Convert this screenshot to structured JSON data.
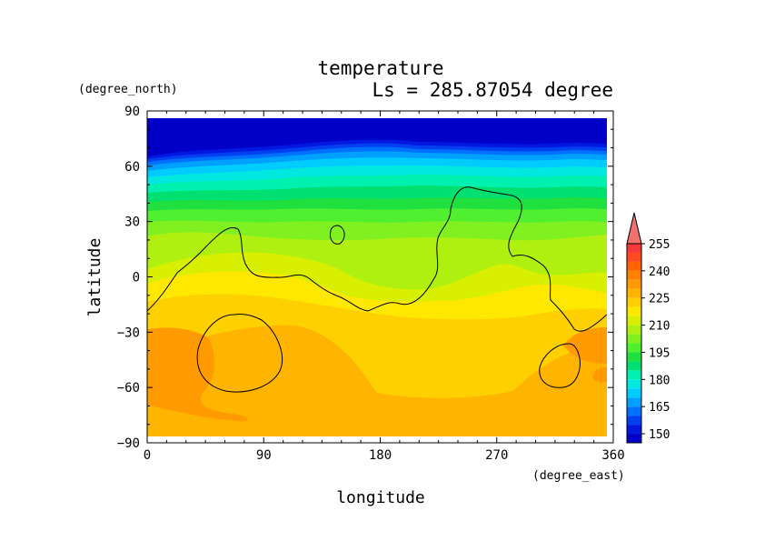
{
  "chart_data": {
    "type": "heatmap",
    "title": "temperature",
    "subtitle": "Ls = 285.87054 degree",
    "xlabel": "longitude",
    "ylabel": "latitude",
    "xunit": "(degree_east)",
    "yunit": "(degree_north)",
    "xlim": [
      0,
      360
    ],
    "ylim": [
      -90,
      90
    ],
    "xticks": [
      0,
      90,
      180,
      270,
      360
    ],
    "yticks": [
      90,
      60,
      30,
      0,
      -30,
      -60,
      -90
    ],
    "xtick_labels": [
      "0",
      "90",
      "180",
      "270",
      "360"
    ],
    "ytick_labels": [
      "90",
      "60",
      "30",
      "0",
      "−30",
      "−60",
      "−90"
    ],
    "colorbar": {
      "levels": [
        145,
        150,
        155,
        160,
        165,
        170,
        175,
        180,
        185,
        190,
        195,
        200,
        205,
        210,
        215,
        220,
        225,
        230,
        235,
        240,
        245,
        250,
        255,
        260
      ],
      "labels": [
        "150",
        "165",
        "180",
        "195",
        "210",
        "225",
        "240",
        "255"
      ],
      "label_values": [
        150,
        165,
        180,
        195,
        210,
        225,
        240,
        255
      ],
      "colors": [
        "#0000c8",
        "#0018e0",
        "#0040f0",
        "#0070ff",
        "#00a0ff",
        "#00ccff",
        "#00e8e0",
        "#00f0b0",
        "#00e070",
        "#20e040",
        "#50f030",
        "#80f020",
        "#b0f010",
        "#d8f000",
        "#ffe800",
        "#ffd000",
        "#ffb400",
        "#ff9a00",
        "#ff8000",
        "#ff6400",
        "#ff4a20",
        "#f83838",
        "#f05050",
        "#f07070"
      ]
    }
  }
}
